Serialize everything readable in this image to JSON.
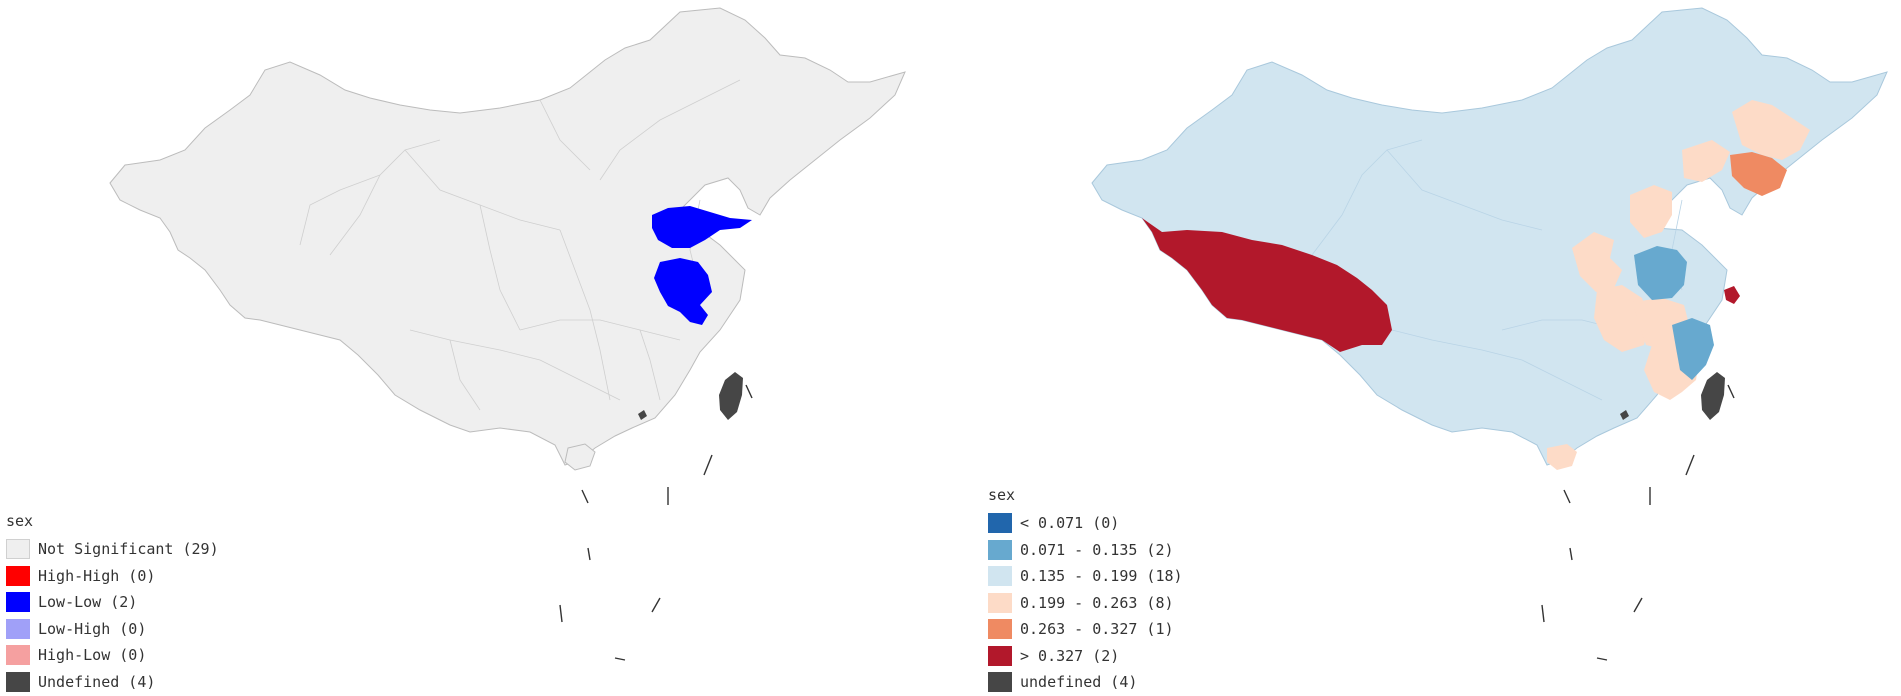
{
  "maps": [
    {
      "legend": {
        "title": "sex",
        "items": [
          {
            "label": "Not Significant (29)",
            "color": "#efefef"
          },
          {
            "label": "High-High (0)",
            "color": "#ff0000"
          },
          {
            "label": "Low-Low (2)",
            "color": "#0000ff"
          },
          {
            "label": "Low-High (0)",
            "color": "#a0a0f8"
          },
          {
            "label": "High-Low (0)",
            "color": "#f5a0a0"
          },
          {
            "label": "Undefined (4)",
            "color": "#464646"
          }
        ]
      }
    },
    {
      "legend": {
        "title": "sex",
        "items": [
          {
            "label": "< 0.071 (0)",
            "color": "#2166ac"
          },
          {
            "label": "0.071 - 0.135 (2)",
            "color": "#67a9cf"
          },
          {
            "label": "0.135 - 0.199 (18)",
            "color": "#d1e5f0"
          },
          {
            "label": "0.199 - 0.263 (8)",
            "color": "#fddbc7"
          },
          {
            "label": "0.263 - 0.327 (1)",
            "color": "#ef8a62"
          },
          {
            "label": "> 0.327 (2)",
            "color": "#b2182b"
          },
          {
            "label": "undefined (4)",
            "color": "#464646"
          }
        ]
      }
    }
  ]
}
